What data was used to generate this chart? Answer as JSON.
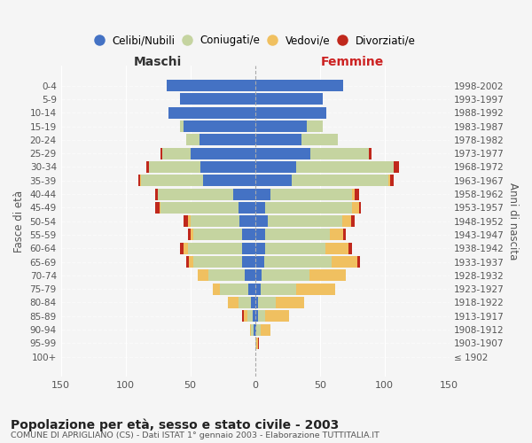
{
  "age_groups": [
    "100+",
    "95-99",
    "90-94",
    "85-89",
    "80-84",
    "75-79",
    "70-74",
    "65-69",
    "60-64",
    "55-59",
    "50-54",
    "45-49",
    "40-44",
    "35-39",
    "30-34",
    "25-29",
    "20-24",
    "15-19",
    "10-14",
    "5-9",
    "0-4"
  ],
  "birth_years": [
    "≤ 1902",
    "1903-1907",
    "1908-1912",
    "1913-1917",
    "1918-1922",
    "1923-1927",
    "1928-1932",
    "1933-1937",
    "1938-1942",
    "1943-1947",
    "1948-1952",
    "1953-1957",
    "1958-1962",
    "1963-1967",
    "1968-1972",
    "1973-1977",
    "1978-1982",
    "1983-1987",
    "1988-1992",
    "1993-1997",
    "1998-2002"
  ],
  "colors": {
    "celibe": "#4472c4",
    "coniugato": "#c5d4a0",
    "vedovo": "#f0c060",
    "divorziato": "#c0281c"
  },
  "maschi": {
    "celibe": [
      0,
      0,
      1,
      2,
      3,
      5,
      8,
      10,
      10,
      10,
      12,
      13,
      17,
      40,
      42,
      50,
      43,
      55,
      67,
      58,
      68
    ],
    "coniugato": [
      0,
      0,
      2,
      4,
      10,
      22,
      28,
      38,
      42,
      38,
      38,
      60,
      58,
      48,
      40,
      22,
      10,
      3,
      0,
      0,
      0
    ],
    "vedovo": [
      0,
      0,
      1,
      3,
      8,
      6,
      8,
      3,
      3,
      2,
      2,
      1,
      0,
      1,
      0,
      0,
      0,
      0,
      0,
      0,
      0
    ],
    "divorziato": [
      0,
      0,
      0,
      1,
      0,
      0,
      0,
      2,
      3,
      2,
      3,
      3,
      2,
      1,
      2,
      1,
      0,
      0,
      0,
      0,
      0
    ]
  },
  "femmine": {
    "nubile": [
      0,
      0,
      1,
      2,
      2,
      4,
      5,
      7,
      8,
      8,
      10,
      8,
      12,
      28,
      32,
      43,
      36,
      40,
      55,
      52,
      68
    ],
    "coniugata": [
      0,
      1,
      3,
      6,
      14,
      28,
      37,
      52,
      46,
      50,
      57,
      67,
      63,
      75,
      75,
      45,
      28,
      12,
      0,
      0,
      0
    ],
    "vedova": [
      0,
      1,
      8,
      18,
      22,
      30,
      28,
      20,
      18,
      10,
      7,
      5,
      2,
      1,
      0,
      0,
      0,
      0,
      0,
      0,
      0
    ],
    "divorziata": [
      0,
      1,
      0,
      0,
      0,
      0,
      0,
      2,
      3,
      2,
      3,
      2,
      3,
      3,
      4,
      2,
      0,
      0,
      0,
      0,
      0
    ]
  },
  "xlim": 150,
  "title": "Popolazione per età, sesso e stato civile - 2003",
  "subtitle": "COMUNE DI APRIGLIANO (CS) - Dati ISTAT 1° gennaio 2003 - Elaborazione TUTTITALIA.IT",
  "ylabel_left": "Fasce di età",
  "ylabel_right": "Anni di nascita",
  "xlabel_maschi": "Maschi",
  "xlabel_femmine": "Femmine",
  "legend_labels": [
    "Celibi/Nubili",
    "Coniugati/e",
    "Vedovi/e",
    "Divorziati/e"
  ],
  "bg_color": "#f5f5f5"
}
